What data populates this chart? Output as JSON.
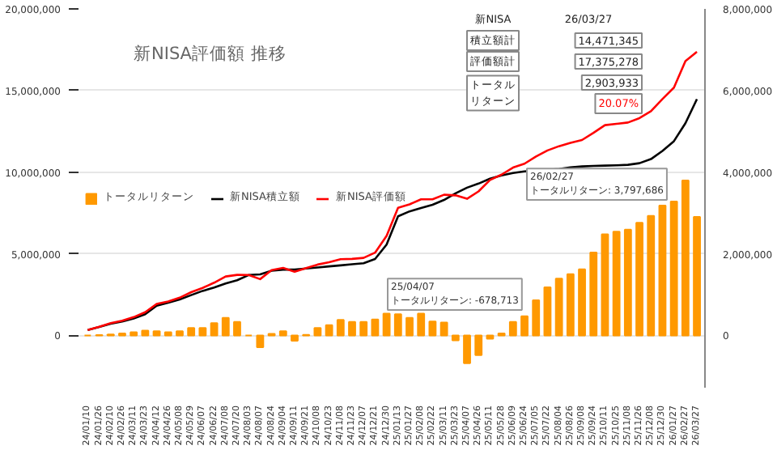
{
  "chart_data": {
    "type": "bar",
    "title": "新NISA評価額 推移",
    "categories": [
      "24/01/10",
      "24/01/26",
      "24/02/10",
      "24/02/26",
      "24/03/11",
      "24/03/23",
      "24/04/12",
      "24/04/26",
      "24/05/08",
      "24/05/29",
      "24/06/07",
      "24/06/22",
      "24/07/08",
      "24/07/20",
      "24/08/03",
      "24/08/07",
      "24/08/24",
      "24/09/04",
      "24/09/11",
      "24/09/21",
      "24/10/08",
      "24/10/23",
      "24/11/08",
      "24/11/23",
      "24/12/07",
      "24/12/21",
      "24/12/30",
      "25/01/13",
      "25/01/27",
      "25/02/08",
      "25/02/22",
      "25/03/11",
      "25/03/23",
      "25/04/07",
      "25/04/26",
      "25/05/11",
      "25/05/28",
      "25/06/09",
      "25/06/24",
      "25/07/05",
      "25/07/22",
      "25/08/04",
      "25/08/26",
      "25/09/08",
      "25/09/24",
      "25/10/11",
      "25/10/25",
      "25/11/08",
      "25/11/26",
      "25/12/08",
      "25/12/30",
      "26/01/27",
      "26/02/27",
      "26/03/27"
    ],
    "series": [
      {
        "name": "トータルリターン",
        "axis": "y2",
        "color": "#ff9900",
        "values": [
          0,
          10000,
          25000,
          50000,
          80000,
          120000,
          105000,
          80000,
          105000,
          180000,
          180000,
          300000,
          430000,
          330000,
          0,
          -290000,
          40000,
          105000,
          -130000,
          15000,
          180000,
          250000,
          380000,
          330000,
          330000,
          390000,
          535000,
          520000,
          430000,
          535000,
          340000,
          315000,
          -120000,
          -678713,
          -480000,
          -80000,
          50000,
          330000,
          470000,
          860000,
          1180000,
          1390000,
          1500000,
          1620000,
          2030000,
          2480000,
          2540000,
          2590000,
          2760000,
          2930000,
          3180000,
          3280000,
          3797686,
          2903933
        ]
      },
      {
        "name": "新NISA積立額",
        "type": "line",
        "color": "#000000",
        "values": [
          330000,
          520000,
          720000,
          850000,
          1040000,
          1300000,
          1820000,
          2000000,
          2200000,
          2470000,
          2730000,
          2930000,
          3180000,
          3380000,
          3700000,
          3740000,
          3960000,
          4030000,
          4030000,
          4100000,
          4160000,
          4230000,
          4290000,
          4360000,
          4420000,
          4680000,
          5560000,
          7300000,
          7600000,
          7800000,
          8000000,
          8300000,
          8700000,
          9050000,
          9300000,
          9600000,
          9800000,
          9950000,
          10050000,
          10100000,
          10150000,
          10200000,
          10300000,
          10350000,
          10380000,
          10400000,
          10420000,
          10450000,
          10550000,
          10800000,
          11300000,
          11900000,
          13000000,
          14471345
        ]
      },
      {
        "name": "新NISA評価額",
        "type": "line",
        "color": "#ff0000",
        "values": [
          330000,
          530000,
          750000,
          900000,
          1120000,
          1420000,
          1930000,
          2080000,
          2310000,
          2650000,
          2910000,
          3230000,
          3610000,
          3710000,
          3700000,
          3450000,
          4000000,
          4140000,
          3900000,
          4120000,
          4340000,
          4480000,
          4670000,
          4690000,
          4750000,
          5070000,
          6100000,
          7820000,
          8030000,
          8335000,
          8340000,
          8615000,
          8580000,
          8370000,
          8820000,
          9520000,
          9850000,
          10280000,
          10520000,
          10960000,
          11330000,
          11590000,
          11800000,
          11970000,
          12410000,
          12880000,
          12960000,
          13040000,
          13310000,
          13730000,
          14480000,
          15180000,
          16800000,
          17375278
        ]
      }
    ],
    "ylim": [
      -3200000,
      20000000
    ],
    "yticks": [
      {
        "value": 0,
        "label": "0"
      },
      {
        "value": 5000000,
        "label": "5,000,000"
      },
      {
        "value": 10000000,
        "label": "10,000,000"
      },
      {
        "value": 15000000,
        "label": "15,000,000"
      },
      {
        "value": 20000000,
        "label": "20,000,000"
      }
    ],
    "y2lim": [
      -1280000,
      8000000
    ],
    "y2ticks": [
      {
        "value": 0,
        "label": "0"
      },
      {
        "value": 2000000,
        "label": "2,000,000"
      },
      {
        "value": 4000000,
        "label": "4,000,000"
      },
      {
        "value": 6000000,
        "label": "6,000,000"
      },
      {
        "value": 8000000,
        "label": "8,000,000"
      }
    ],
    "grid": "y",
    "legend": "left",
    "annotations": [
      "新NISA",
      "26/03/27",
      "積立額計",
      "14,471,345",
      "評価額計",
      "17,375,278",
      "トータルリターン",
      "2,903,933",
      "20.07%",
      "25/04/07\nトータルリターン: -678,713",
      "26/02/27\nトータルリターン: 3,797,686"
    ]
  }
}
